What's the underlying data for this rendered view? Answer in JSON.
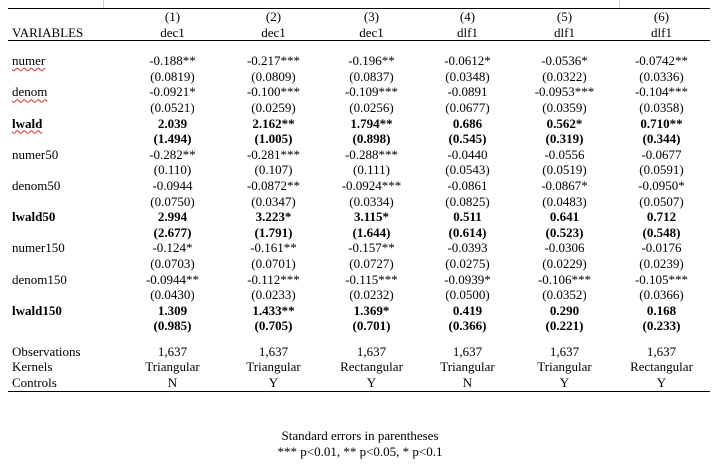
{
  "header": {
    "col_numbers": [
      "(1)",
      "(2)",
      "(3)",
      "(4)",
      "(5)",
      "(6)"
    ],
    "variables_label": "VARIABLES",
    "dep_vars": [
      "dec1",
      "dec1",
      "dec1",
      "dlf1",
      "dlf1",
      "dlf1"
    ]
  },
  "rows": [
    {
      "name": "numer",
      "coef": [
        "-0.188**",
        "-0.217***",
        "-0.196**",
        "-0.0612*",
        "-0.0536*",
        "-0.0742**"
      ],
      "se": [
        "(0.0819)",
        "(0.0809)",
        "(0.0837)",
        "(0.0348)",
        "(0.0322)",
        "(0.0336)"
      ]
    },
    {
      "name": "denom",
      "coef": [
        "-0.0921*",
        "-0.100***",
        "-0.109***",
        "-0.0891",
        "-0.0953***",
        "-0.104***"
      ],
      "se": [
        "(0.0521)",
        "(0.0259)",
        "(0.0256)",
        "(0.0677)",
        "(0.0359)",
        "(0.0358)"
      ]
    },
    {
      "name": "lwald",
      "coef": [
        "2.039",
        "2.162**",
        "1.794**",
        "0.686",
        "0.562*",
        "0.710**"
      ],
      "se": [
        "(1.494)",
        "(1.005)",
        "(0.898)",
        "(0.545)",
        "(0.319)",
        "(0.344)"
      ]
    },
    {
      "name": "numer50",
      "coef": [
        "-0.282**",
        "-0.281***",
        "-0.288***",
        "-0.0440",
        "-0.0556",
        "-0.0677"
      ],
      "se": [
        "(0.110)",
        "(0.107)",
        "(0.111)",
        "(0.0543)",
        "(0.0519)",
        "(0.0591)"
      ]
    },
    {
      "name": "denom50",
      "coef": [
        "-0.0944",
        "-0.0872**",
        "-0.0924***",
        "-0.0861",
        "-0.0867*",
        "-0.0950*"
      ],
      "se": [
        "(0.0750)",
        "(0.0347)",
        "(0.0334)",
        "(0.0825)",
        "(0.0483)",
        "(0.0507)"
      ]
    },
    {
      "name": "lwald50",
      "coef": [
        "2.994",
        "3.223*",
        "3.115*",
        "0.511",
        "0.641",
        "0.712"
      ],
      "se": [
        "(2.677)",
        "(1.791)",
        "(1.644)",
        "(0.614)",
        "(0.523)",
        "(0.548)"
      ]
    },
    {
      "name": "numer150",
      "coef": [
        "-0.124*",
        "-0.161**",
        "-0.157**",
        "-0.0393",
        "-0.0306",
        "-0.0176"
      ],
      "se": [
        "(0.0703)",
        "(0.0701)",
        "(0.0727)",
        "(0.0275)",
        "(0.0229)",
        "(0.0239)"
      ]
    },
    {
      "name": "denom150",
      "coef": [
        "-0.0944**",
        "-0.112***",
        "-0.115***",
        "-0.0939*",
        "-0.106***",
        "-0.105***"
      ],
      "se": [
        "(0.0430)",
        "(0.0233)",
        "(0.0232)",
        "(0.0500)",
        "(0.0352)",
        "(0.0366)"
      ]
    },
    {
      "name": "lwald150",
      "coef": [
        "1.309",
        "1.433**",
        "1.369*",
        "0.419",
        "0.290",
        "0.168"
      ],
      "se": [
        "(0.985)",
        "(0.705)",
        "(0.701)",
        "(0.366)",
        "(0.221)",
        "(0.233)"
      ]
    }
  ],
  "footer_rows": [
    {
      "name": "Observations",
      "values": [
        "1,637",
        "1,637",
        "1,637",
        "1,637",
        "1,637",
        "1,637"
      ]
    },
    {
      "name": "Kernels",
      "values": [
        "Triangular",
        "Triangular",
        "Rectangular",
        "Triangular",
        "Triangular",
        "Rectangular"
      ]
    },
    {
      "name": "Controls",
      "values": [
        "N",
        "Y",
        "Y",
        "N",
        "Y",
        "Y"
      ]
    }
  ],
  "notes": {
    "line1": "Standard errors in parentheses",
    "line2": "*** p<0.01, ** p<0.05, * p<0.1"
  }
}
